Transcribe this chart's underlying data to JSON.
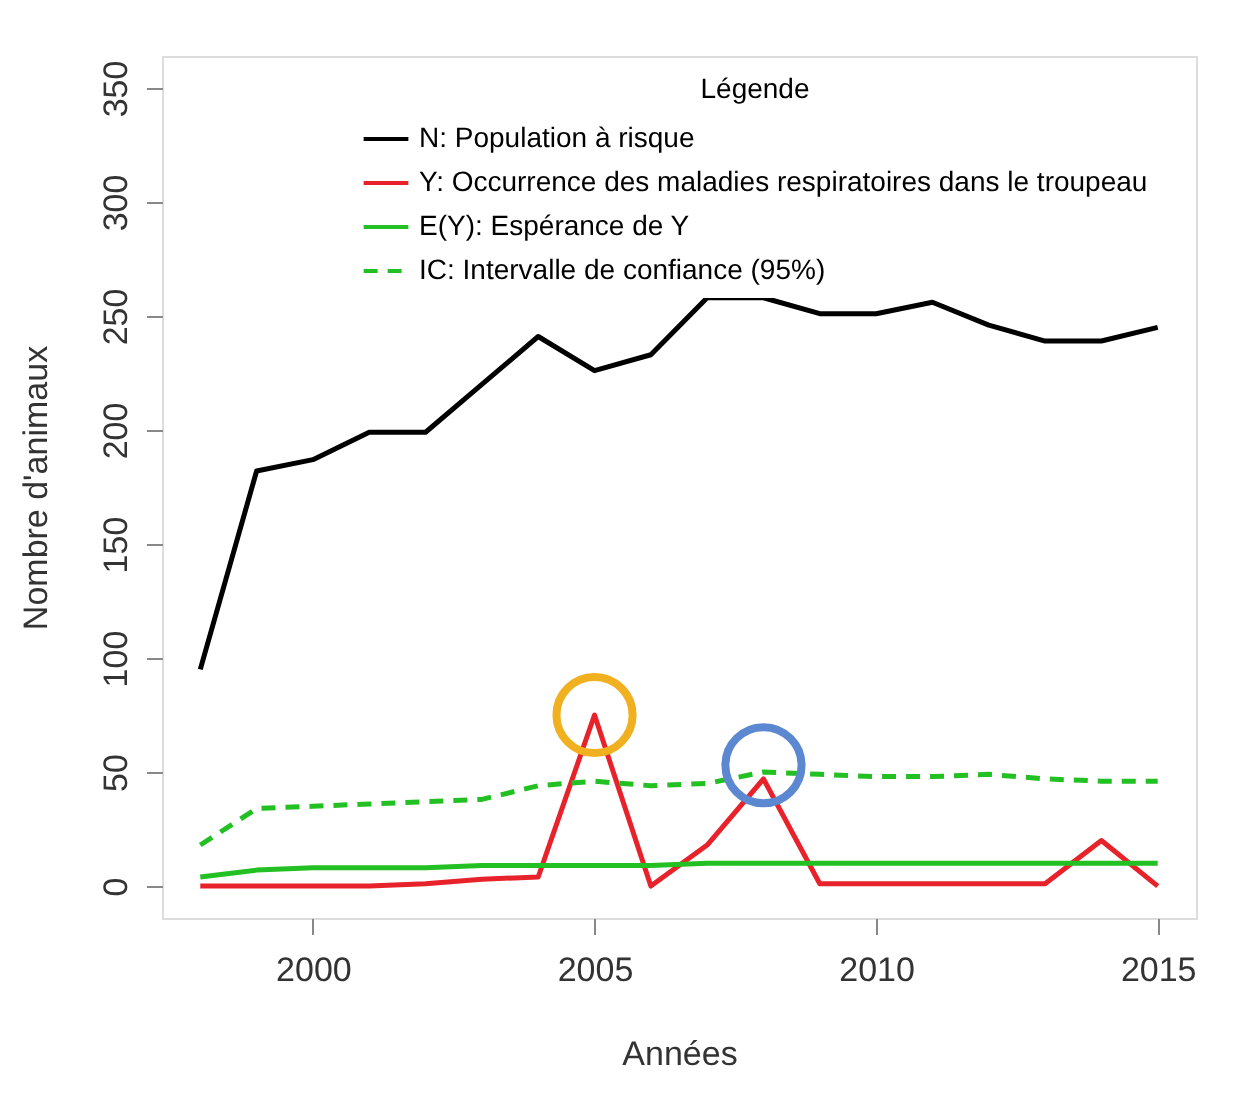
{
  "chart_data": {
    "type": "line",
    "xlabel": "Années",
    "ylabel": "Nombre d'animaux",
    "legend_title": "Légende",
    "legend": "top",
    "x": [
      1998,
      1999,
      2000,
      2001,
      2002,
      2003,
      2004,
      2005,
      2006,
      2007,
      2008,
      2009,
      2010,
      2011,
      2012,
      2013,
      2014,
      2015
    ],
    "xlim": [
      1997.32,
      2015.68
    ],
    "xticks": [
      2000,
      2005,
      2010,
      2015
    ],
    "ylim": [
      -14,
      364
    ],
    "yticks": [
      0,
      50,
      100,
      150,
      200,
      250,
      300,
      350
    ],
    "grid": false,
    "series": [
      {
        "name": "N: Population à risque",
        "color": "#000000",
        "line_style": "solid",
        "values": [
          95,
          182,
          187,
          199,
          199,
          220,
          241,
          226,
          233,
          258,
          258,
          251,
          251,
          256,
          246,
          239,
          239,
          245
        ]
      },
      {
        "name": "Y: Occurrence des maladies respiratoires dans le troupeau",
        "color": "#e8222a",
        "line_style": "solid",
        "values": [
          0,
          0,
          0,
          0,
          1,
          3,
          4,
          75,
          0,
          18,
          47,
          1,
          1,
          1,
          1,
          1,
          20,
          0
        ]
      },
      {
        "name": "E(Y): Espérance de Y",
        "color": "#22c022",
        "line_style": "solid",
        "values": [
          4,
          7,
          8,
          8,
          8,
          9,
          9,
          9,
          9,
          10,
          10,
          10,
          10,
          10,
          10,
          10,
          10,
          10
        ]
      },
      {
        "name": "IC: Intervalle de confiance (95%)",
        "color": "#22c022",
        "line_style": "dashed",
        "values": [
          18,
          34,
          35,
          36,
          37,
          38,
          44,
          46,
          44,
          45,
          50,
          49,
          48,
          48,
          49,
          47,
          46,
          46
        ]
      },
      {
        "type": "scatter",
        "color": "#f0b020",
        "marker": "circle",
        "x": [
          2005
        ],
        "values": [
          75
        ]
      },
      {
        "type": "scatter",
        "color": "#5b88d0",
        "marker": "circle",
        "x": [
          2008
        ],
        "values": [
          53
        ]
      }
    ]
  }
}
